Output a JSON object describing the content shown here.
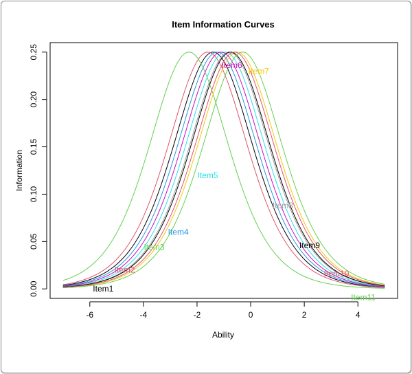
{
  "chart_data": {
    "type": "line",
    "title": "Item Information Curves",
    "xlabel": "Ability",
    "ylabel": "Information",
    "xlim": [
      -7,
      5
    ],
    "ylim": [
      0,
      0.25
    ],
    "xticks": [
      -6,
      -4,
      -2,
      0,
      2,
      4
    ],
    "xtick_labels": [
      "-6",
      "-4",
      "-2",
      "0",
      "2",
      "4"
    ],
    "yticks": [
      0.0,
      0.05,
      0.1,
      0.15,
      0.2,
      0.25
    ],
    "ytick_labels": [
      "0.00",
      "0.05",
      "0.10",
      "0.15",
      "0.20",
      "0.25"
    ],
    "grid": false,
    "series": [
      {
        "name": "Item1",
        "difficulty": -1.4,
        "discrimination": 1,
        "color": "#000000",
        "label_at": [
          -5.5,
          0.0
        ]
      },
      {
        "name": "Item2",
        "difficulty": -1.6,
        "discrimination": 1,
        "color": "#DF536B",
        "label_at": [
          -4.7,
          0.02
        ]
      },
      {
        "name": "Item3",
        "difficulty": -2.3,
        "discrimination": 1,
        "color": "#61D04F",
        "label_at": [
          -3.6,
          0.044
        ]
      },
      {
        "name": "Item4",
        "difficulty": -1.25,
        "discrimination": 1,
        "color": "#2297E6",
        "label_at": [
          -2.7,
          0.06
        ]
      },
      {
        "name": "Item5",
        "difficulty": -0.95,
        "discrimination": 1,
        "color": "#28E2E5",
        "label_at": [
          -1.6,
          0.12
        ]
      },
      {
        "name": "Item6",
        "difficulty": -1.1,
        "discrimination": 1,
        "color": "#CD0BBC",
        "label_at": [
          -0.7,
          0.236
        ]
      },
      {
        "name": "Item7",
        "difficulty": -0.5,
        "discrimination": 1,
        "color": "#F5C710",
        "label_at": [
          0.3,
          0.23
        ]
      },
      {
        "name": "Item8",
        "difficulty": -0.8,
        "discrimination": 1,
        "color": "#9E9E9E",
        "label_at": [
          1.2,
          0.088
        ]
      },
      {
        "name": "Item9",
        "difficulty": -0.75,
        "discrimination": 1,
        "color": "#000000",
        "label_at": [
          2.2,
          0.046
        ]
      },
      {
        "name": "Item10",
        "difficulty": -0.6,
        "discrimination": 1,
        "color": "#DF536B",
        "label_at": [
          3.2,
          0.016
        ]
      },
      {
        "name": "Item11",
        "difficulty": -0.3,
        "discrimination": 1,
        "color": "#61D04F",
        "label_at": [
          4.2,
          -0.009
        ]
      }
    ]
  }
}
